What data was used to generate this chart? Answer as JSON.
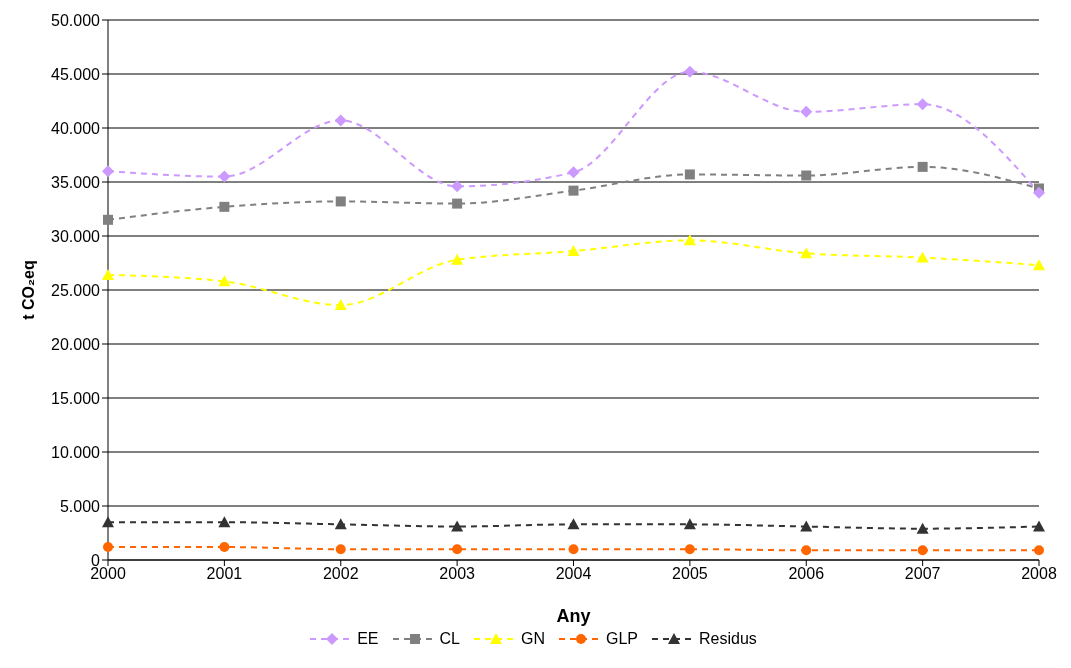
{
  "chart_data": {
    "type": "line",
    "xlabel": "Any",
    "ylabel": "t CO₂eq",
    "categories": [
      "2000",
      "2001",
      "2002",
      "2003",
      "2004",
      "2005",
      "2006",
      "2007",
      "2008"
    ],
    "ylim": [
      0,
      50000
    ],
    "yticks": [
      {
        "value": 0,
        "label": "0"
      },
      {
        "value": 5000,
        "label": "5.000"
      },
      {
        "value": 10000,
        "label": "10.000"
      },
      {
        "value": 15000,
        "label": "15.000"
      },
      {
        "value": 20000,
        "label": "20.000"
      },
      {
        "value": 25000,
        "label": "25.000"
      },
      {
        "value": 30000,
        "label": "30.000"
      },
      {
        "value": 35000,
        "label": "35.000"
      },
      {
        "value": 40000,
        "label": "40.000"
      },
      {
        "value": 45000,
        "label": "45.000"
      },
      {
        "value": 50000,
        "label": "50.000"
      }
    ],
    "grid": "y",
    "legend": "bottom",
    "line_style": "dashed",
    "series": [
      {
        "name": "EE",
        "color": "#cc99ff",
        "marker": "diamond",
        "values": [
          36000,
          35500,
          40700,
          34600,
          35900,
          45200,
          41500,
          42200,
          34000
        ]
      },
      {
        "name": "CL",
        "color": "#808080",
        "marker": "square",
        "values": [
          31500,
          32700,
          33200,
          33000,
          34200,
          35700,
          35600,
          36400,
          34400
        ]
      },
      {
        "name": "GN",
        "color": "#ffff00",
        "marker": "triangle",
        "values": [
          26400,
          25800,
          23600,
          27800,
          28600,
          29600,
          28400,
          28000,
          27300
        ]
      },
      {
        "name": "GLP",
        "color": "#ff6600",
        "marker": "circle",
        "values": [
          1200,
          1200,
          1000,
          1000,
          1000,
          1000,
          900,
          900,
          900
        ]
      },
      {
        "name": "Residus",
        "color": "#333333",
        "marker": "triangle",
        "values": [
          3500,
          3500,
          3300,
          3100,
          3300,
          3300,
          3100,
          2900,
          3100
        ]
      }
    ]
  }
}
